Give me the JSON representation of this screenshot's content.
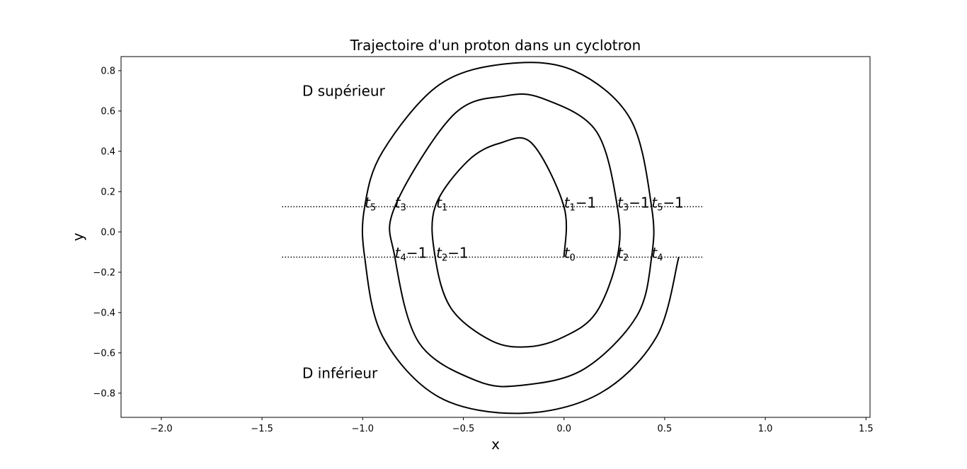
{
  "chart_data": {
    "type": "line",
    "title": "Trajectoire d'un proton dans un cyclotron",
    "xlabel": "x",
    "ylabel": "y",
    "xlim": [
      -2.2,
      1.52
    ],
    "ylim": [
      -0.92,
      0.87
    ],
    "grid": false,
    "xticks": [
      {
        "value": -2.0,
        "label": "−2.0"
      },
      {
        "value": -1.5,
        "label": "−1.5"
      },
      {
        "value": -1.0,
        "label": "−1.0"
      },
      {
        "value": -0.5,
        "label": "−0.5"
      },
      {
        "value": 0.0,
        "label": "0.0"
      },
      {
        "value": 0.5,
        "label": "0.5"
      },
      {
        "value": 1.0,
        "label": "1.0"
      },
      {
        "value": 1.5,
        "label": "1.5"
      }
    ],
    "yticks": [
      {
        "value": 0.8,
        "label": "0.8"
      },
      {
        "value": 0.6,
        "label": "0.6"
      },
      {
        "value": 0.4,
        "label": "0.4"
      },
      {
        "value": 0.2,
        "label": "0.2"
      },
      {
        "value": 0.0,
        "label": "0.0"
      },
      {
        "value": -0.2,
        "label": "−0.2"
      },
      {
        "value": -0.4,
        "label": "−0.4"
      },
      {
        "value": -0.6,
        "label": "−0.6"
      },
      {
        "value": -0.8,
        "label": "−0.8"
      }
    ],
    "gap_lines": [
      {
        "name": "",
        "y": 0.125,
        "x": [
          -1.4,
          0.69
        ],
        "style": "dotted"
      },
      {
        "name": "",
        "y": -0.125,
        "x": [
          -1.4,
          0.69
        ],
        "style": "dotted"
      }
    ],
    "trajectory": {
      "style": "solid",
      "color": "#000000",
      "points": [
        [
          0.0,
          -0.125
        ],
        [
          0.0,
          0.125
        ],
        [
          -0.16,
          0.44
        ],
        [
          -0.32,
          0.44
        ],
        [
          -0.48,
          0.35
        ],
        [
          -0.64,
          0.125
        ],
        [
          -0.64,
          -0.125
        ],
        [
          -0.56,
          -0.38
        ],
        [
          -0.36,
          -0.54
        ],
        [
          -0.18,
          -0.57
        ],
        [
          0.0,
          -0.52
        ],
        [
          0.16,
          -0.4
        ],
        [
          0.265,
          -0.125
        ],
        [
          0.265,
          0.125
        ],
        [
          0.16,
          0.5
        ],
        [
          -0.1,
          0.66
        ],
        [
          -0.29,
          0.675
        ],
        [
          -0.55,
          0.58
        ],
        [
          -0.84,
          0.125
        ],
        [
          -0.84,
          -0.125
        ],
        [
          -0.72,
          -0.55
        ],
        [
          -0.43,
          -0.74
        ],
        [
          -0.2,
          -0.76
        ],
        [
          0.1,
          -0.68
        ],
        [
          0.36,
          -0.42
        ],
        [
          0.435,
          -0.125
        ],
        [
          0.435,
          0.125
        ],
        [
          0.33,
          0.56
        ],
        [
          0.05,
          0.8
        ],
        [
          -0.28,
          0.835
        ],
        [
          -0.62,
          0.73
        ],
        [
          -0.9,
          0.4
        ],
        [
          -0.99,
          0.125
        ],
        [
          -0.99,
          -0.125
        ],
        [
          -0.9,
          -0.52
        ],
        [
          -0.62,
          -0.82
        ],
        [
          -0.21,
          -0.9
        ],
        [
          0.18,
          -0.8
        ],
        [
          0.46,
          -0.52
        ],
        [
          0.57,
          -0.125
        ]
      ]
    },
    "annotations": [
      {
        "text": "D supérieur",
        "x": -1.3,
        "y": 0.7
      },
      {
        "text": "D inférieur",
        "x": -1.3,
        "y": -0.7
      }
    ],
    "time_labels": [
      {
        "main": "t",
        "sub": "5",
        "suffix": "",
        "x": -0.99,
        "y": 0.125
      },
      {
        "main": "t",
        "sub": "3",
        "suffix": "",
        "x": -0.84,
        "y": 0.125
      },
      {
        "main": "t",
        "sub": "1",
        "suffix": "",
        "x": -0.635,
        "y": 0.125
      },
      {
        "main": "t",
        "sub": "1",
        "suffix": "−1",
        "x": 0.0,
        "y": 0.125
      },
      {
        "main": "t",
        "sub": "3",
        "suffix": "−1",
        "x": 0.265,
        "y": 0.125
      },
      {
        "main": "t",
        "sub": "5",
        "suffix": "−1",
        "x": 0.435,
        "y": 0.125
      },
      {
        "main": "t",
        "sub": "4",
        "suffix": "−1",
        "x": -0.84,
        "y": -0.125
      },
      {
        "main": "t",
        "sub": "2",
        "suffix": "−1",
        "x": -0.635,
        "y": -0.125
      },
      {
        "main": "t",
        "sub": "0",
        "suffix": "",
        "x": 0.0,
        "y": -0.125
      },
      {
        "main": "t",
        "sub": "2",
        "suffix": "",
        "x": 0.265,
        "y": -0.125
      },
      {
        "main": "t",
        "sub": "4",
        "suffix": "",
        "x": 0.435,
        "y": -0.125
      }
    ]
  }
}
